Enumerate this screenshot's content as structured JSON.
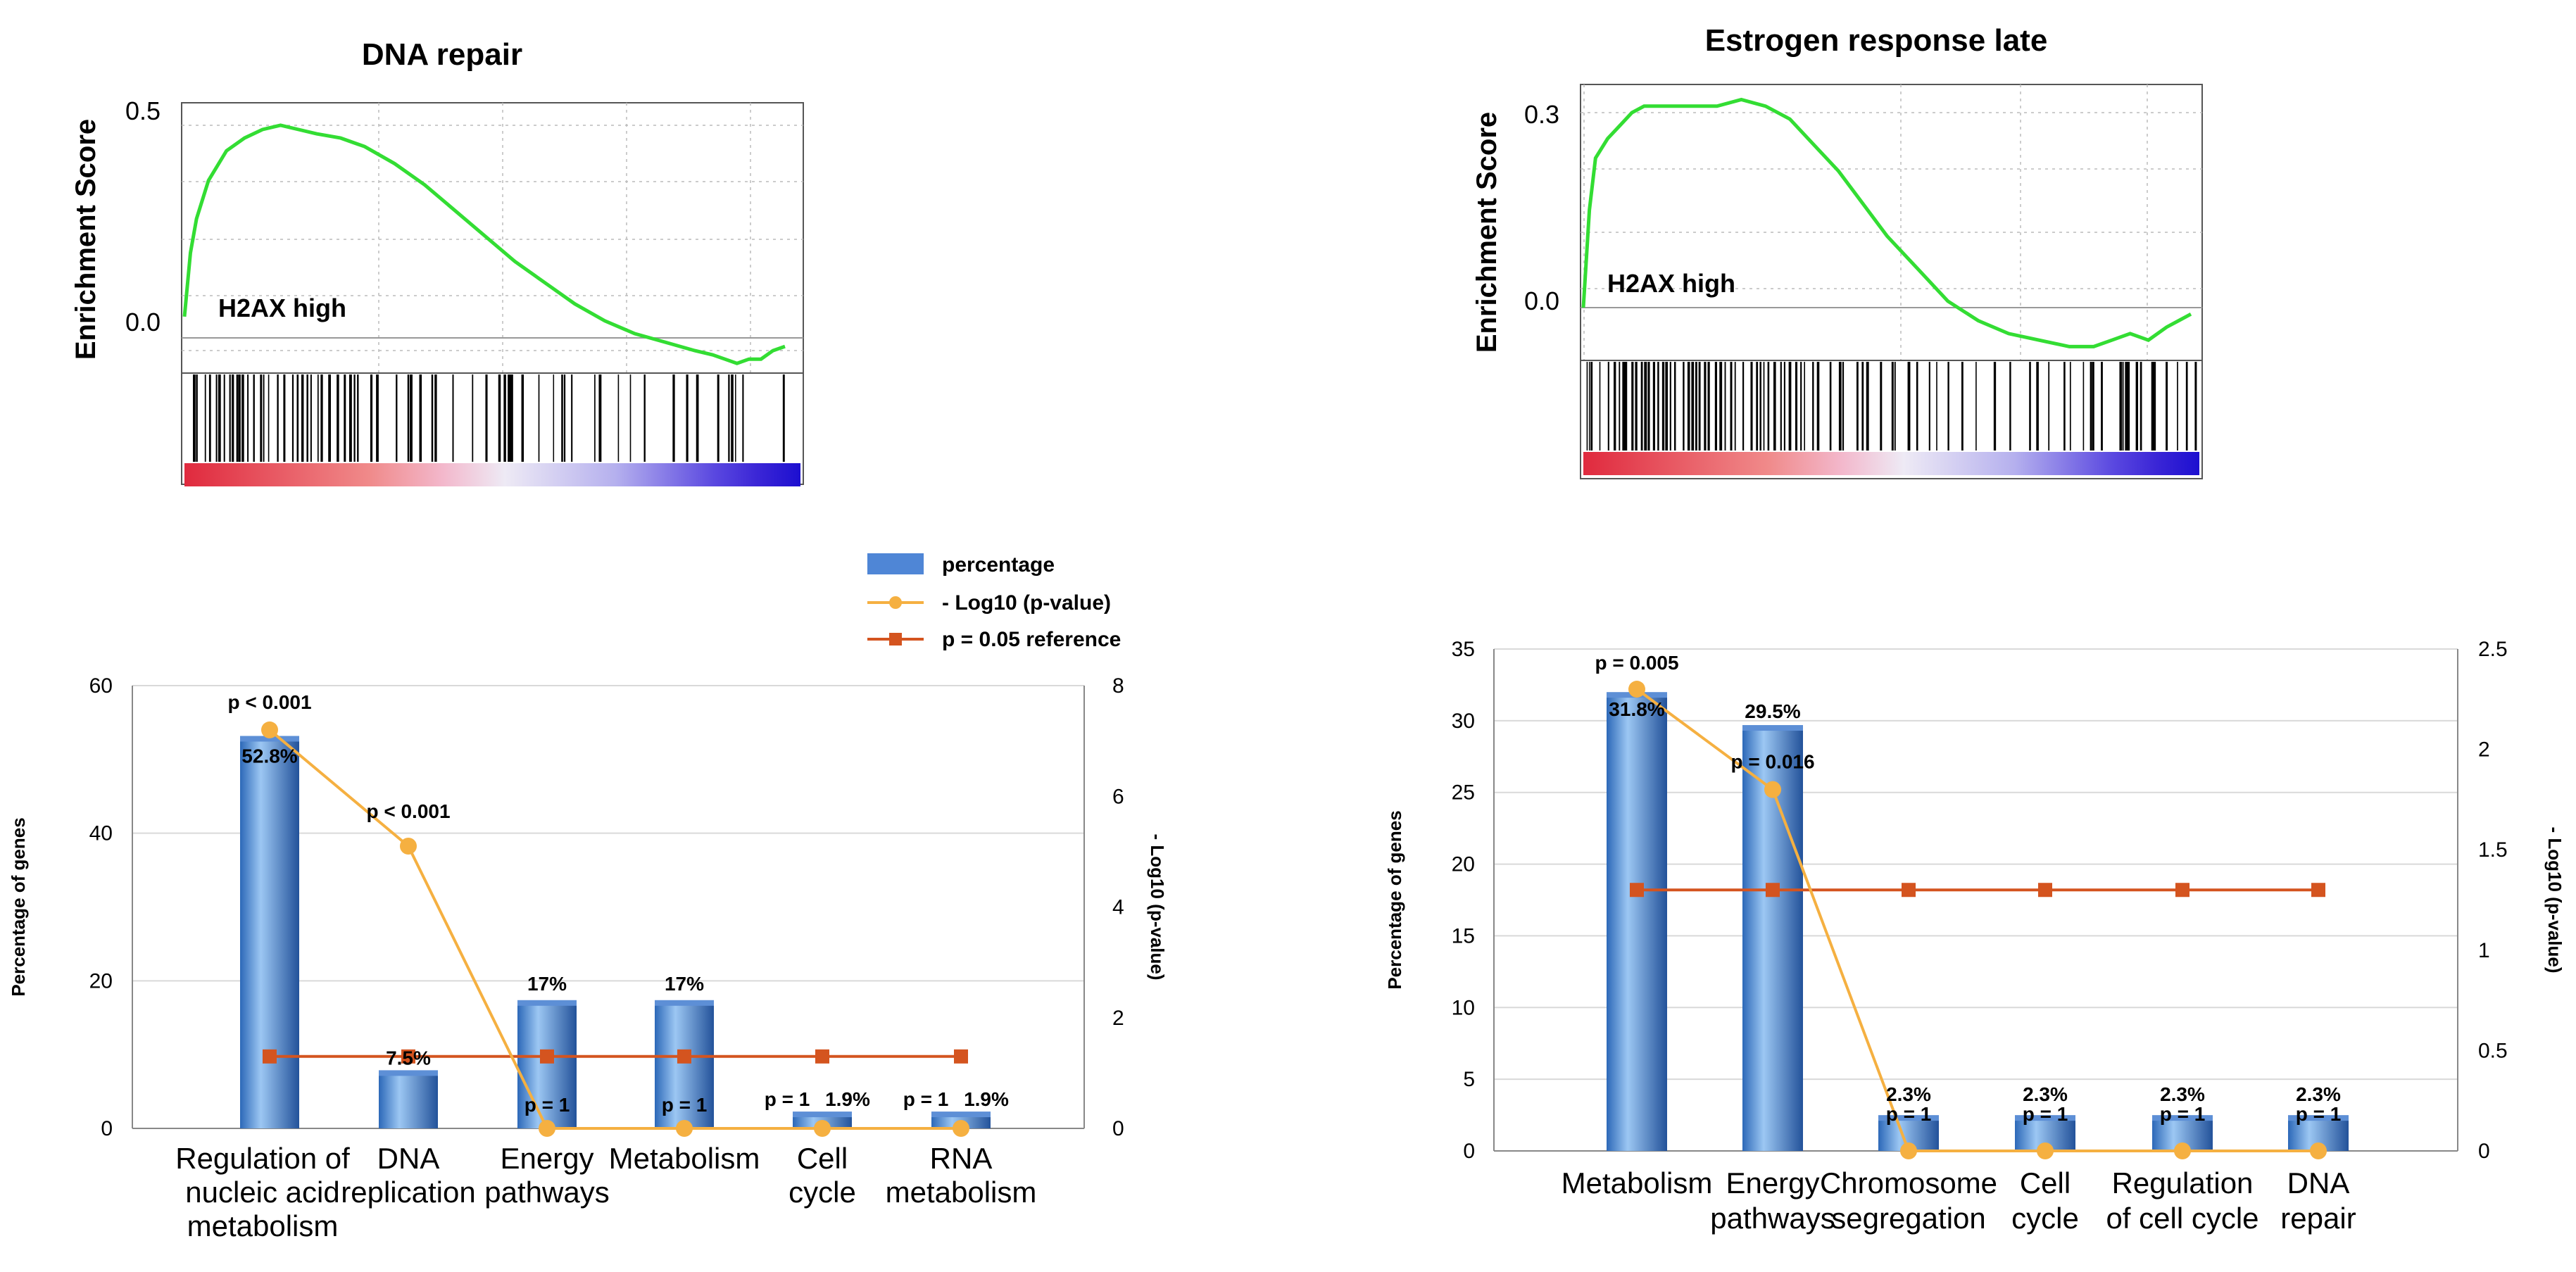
{
  "chart_data": [
    {
      "type": "line",
      "title": "DNA repair",
      "ylabel": "Enrichment Score",
      "annotation": "H2AX high",
      "y_ticks": [
        "0.5",
        "0.0"
      ],
      "ylim": [
        -0.06,
        0.5
      ],
      "series": [
        {
          "name": "running enrichment score",
          "x": [
            0,
            0.01,
            0.02,
            0.04,
            0.07,
            0.1,
            0.13,
            0.16,
            0.19,
            0.22,
            0.26,
            0.3,
            0.35,
            0.4,
            0.45,
            0.5,
            0.55,
            0.6,
            0.65,
            0.7,
            0.75,
            0.8,
            0.85,
            0.88,
            0.9,
            0.92,
            0.94,
            0.96,
            0.98,
            1.0
          ],
          "values": [
            0.05,
            0.2,
            0.28,
            0.37,
            0.44,
            0.47,
            0.49,
            0.5,
            0.49,
            0.48,
            0.47,
            0.45,
            0.41,
            0.36,
            0.3,
            0.24,
            0.18,
            0.13,
            0.08,
            0.04,
            0.01,
            -0.01,
            -0.03,
            -0.04,
            -0.05,
            -0.06,
            -0.05,
            -0.05,
            -0.03,
            -0.02
          ]
        }
      ]
    },
    {
      "type": "line",
      "title": "Estrogen response late",
      "ylabel": "Enrichment Score",
      "annotation": "H2AX high",
      "y_ticks": [
        "0.3",
        "0.0"
      ],
      "ylim": [
        -0.07,
        0.33
      ],
      "series": [
        {
          "name": "running enrichment score",
          "x": [
            0,
            0.01,
            0.02,
            0.04,
            0.06,
            0.08,
            0.1,
            0.14,
            0.18,
            0.22,
            0.26,
            0.3,
            0.34,
            0.38,
            0.42,
            0.46,
            0.5,
            0.55,
            0.6,
            0.65,
            0.7,
            0.75,
            0.8,
            0.84,
            0.87,
            0.9,
            0.93,
            0.96,
            0.98,
            1.0
          ],
          "values": [
            0.0,
            0.15,
            0.23,
            0.26,
            0.28,
            0.3,
            0.31,
            0.31,
            0.31,
            0.31,
            0.32,
            0.31,
            0.29,
            0.25,
            0.21,
            0.16,
            0.11,
            0.06,
            0.01,
            -0.02,
            -0.04,
            -0.05,
            -0.06,
            -0.06,
            -0.05,
            -0.04,
            -0.05,
            -0.03,
            -0.02,
            -0.01
          ]
        }
      ]
    },
    {
      "type": "bar",
      "legend": [
        "percentage",
        "- Log10 (p-value)",
        "p = 0.05 reference"
      ],
      "categories": [
        "Regulation of nucleic acid metabolism",
        "DNA replication",
        "Energy pathways",
        "Metabolism",
        "Cell cycle",
        "RNA metabolism"
      ],
      "category_lines": [
        [
          "Regulation of",
          "nucleic acid",
          "metabolism"
        ],
        [
          "DNA",
          "replication"
        ],
        [
          "Energy",
          "pathways"
        ],
        [
          "Metabolism"
        ],
        [
          "Cell",
          "cycle"
        ],
        [
          "RNA",
          "metabolism"
        ]
      ],
      "ylabel": "Percentage of genes",
      "y2label": "- Log10 (p-value)",
      "ylim": [
        0,
        60
      ],
      "y_ticks": [
        0,
        20,
        40,
        60
      ],
      "y2lim": [
        0,
        8
      ],
      "y2_ticks": [
        0,
        2,
        4,
        6,
        8
      ],
      "series": [
        {
          "name": "percentage",
          "values": [
            52.8,
            7.5,
            17,
            17,
            1.9,
            1.9
          ],
          "labels": [
            "52.8%",
            "7.5%",
            "17%",
            "17%",
            "1.9%",
            "1.9%"
          ]
        },
        {
          "name": "- Log10 (p-value)",
          "values": [
            7.2,
            5.1,
            0,
            0,
            0,
            0
          ],
          "labels": [
            "p < 0.001",
            "p < 0.001",
            "p = 1",
            "p = 1",
            "p = 1",
            "p = 1"
          ]
        },
        {
          "name": "p = 0.05 reference",
          "values": [
            1.3,
            1.3,
            1.3,
            1.3,
            1.3,
            1.3
          ]
        }
      ]
    },
    {
      "type": "bar",
      "categories": [
        "Metabolism",
        "Energy pathways",
        "Chromosome segregation",
        "Cell cycle",
        "Regulation of cell cycle",
        "DNA repair"
      ],
      "category_lines": [
        [
          "Metabolism"
        ],
        [
          "Energy",
          "pathways"
        ],
        [
          "Chromosome",
          "segregation"
        ],
        [
          "Cell",
          "cycle"
        ],
        [
          "Regulation",
          "of cell cycle"
        ],
        [
          "DNA",
          "repair"
        ]
      ],
      "ylabel": "Percentage of genes",
      "y2label": "- Log10 (p-value)",
      "ylim": [
        0,
        35
      ],
      "y_ticks": [
        0,
        5,
        10,
        15,
        20,
        25,
        30,
        35
      ],
      "y2lim": [
        0,
        2.5
      ],
      "y2_ticks": [
        0,
        0.5,
        1,
        1.5,
        2,
        2.5
      ],
      "series": [
        {
          "name": "percentage",
          "values": [
            31.8,
            29.5,
            2.3,
            2.3,
            2.3,
            2.3
          ],
          "labels": [
            "31.8%",
            "29.5%",
            "2.3%",
            "2.3%",
            "2.3%",
            "2.3%"
          ]
        },
        {
          "name": "- Log10 (p-value)",
          "values": [
            2.3,
            1.8,
            0,
            0,
            0,
            0
          ],
          "labels": [
            "p = 0.005",
            "p = 0.016",
            "p = 1",
            "p = 1",
            "p = 1",
            "p = 1"
          ]
        },
        {
          "name": "p = 0.05 reference",
          "values": [
            1.3,
            1.3,
            1.3,
            1.3,
            1.3,
            1.3
          ]
        }
      ]
    }
  ],
  "colors": {
    "es_line": "#33dd33",
    "bar_light": "#9cc7f3",
    "bar_dark": "#2c68b8",
    "legend_bar": "#4f86d6",
    "pvalue_line": "#f5b041",
    "reference_line": "#d4541f",
    "grid": "#d9d9d9",
    "heat_red": "#e83a48",
    "heat_blue": "#1c0fd0"
  }
}
